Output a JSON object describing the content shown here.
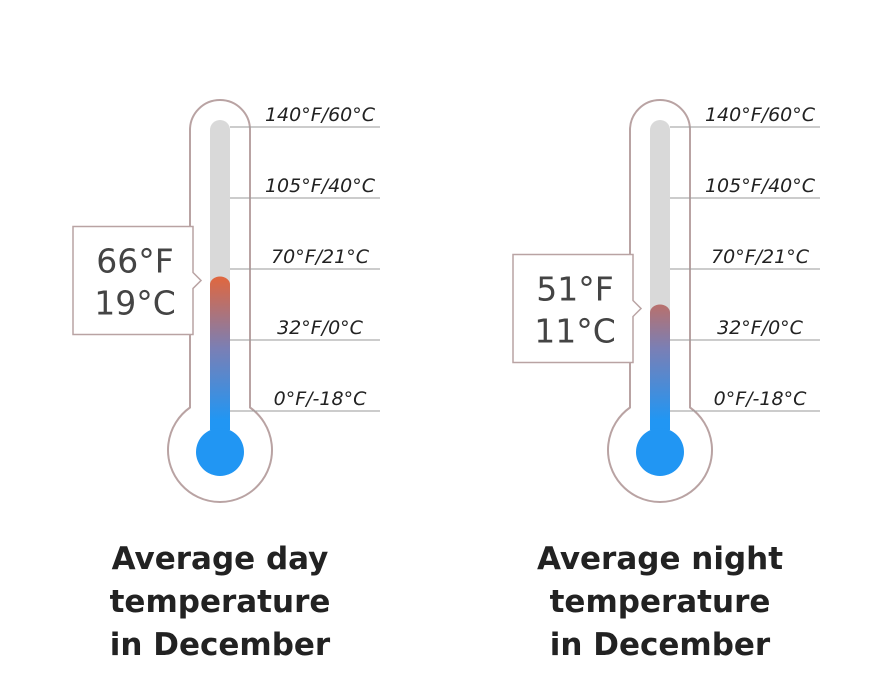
{
  "scale": [
    {
      "value": 140,
      "label": "140°F/60°C"
    },
    {
      "value": 105,
      "label": "105°F/40°C"
    },
    {
      "value": 70,
      "label": "70°F/21°C"
    },
    {
      "value": 32,
      "label": "32°F/0°C"
    },
    {
      "value": 0,
      "label": "0°F/-18°C"
    }
  ],
  "thermometers": [
    {
      "value": 66,
      "readout": [
        "66°F",
        "19°C"
      ],
      "title": "Average day temperature in December"
    },
    {
      "value": 51,
      "readout": [
        "51°F",
        "11°C"
      ],
      "title": "Average night temperature in December"
    }
  ]
}
